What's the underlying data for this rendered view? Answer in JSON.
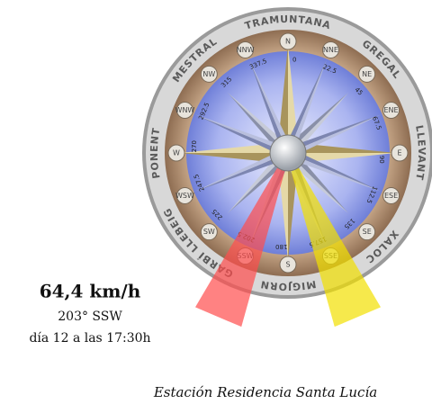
{
  "compass": {
    "winds": [
      {
        "name": "TRAMUNTANA",
        "angle": 0
      },
      {
        "name": "GREGAL",
        "angle": 45
      },
      {
        "name": "LLEVANT",
        "angle": 90
      },
      {
        "name": "XALOC",
        "angle": 135
      },
      {
        "name": "MIGJORN",
        "angle": 180
      },
      {
        "name": "GARBÍ LLEBEIG",
        "angle": 225
      },
      {
        "name": "PONENT",
        "angle": 270
      },
      {
        "name": "MESTRAL",
        "angle": 315
      }
    ],
    "points": [
      "N",
      "NNE",
      "NE",
      "ENE",
      "E",
      "ESE",
      "SE",
      "SSE",
      "S",
      "SSW",
      "SW",
      "WSW",
      "W",
      "WNW",
      "NW",
      "NNW"
    ],
    "degrees": [
      "0",
      "22.5",
      "45",
      "67.5",
      "90",
      "112.5",
      "135",
      "157.5",
      "180",
      "202.5",
      "225",
      "247.5",
      "270",
      "292.5",
      "315",
      "337.5"
    ],
    "beams": [
      {
        "color": "#ff4d4d",
        "direction": 203
      },
      {
        "color": "#f2e000",
        "direction": 157
      }
    ]
  },
  "readout": {
    "speed": "64,4 km/h",
    "direction": "203° SSW",
    "time": "día 12 a las 17:30h"
  },
  "footer": "Estación Residencia Santa Lucía"
}
